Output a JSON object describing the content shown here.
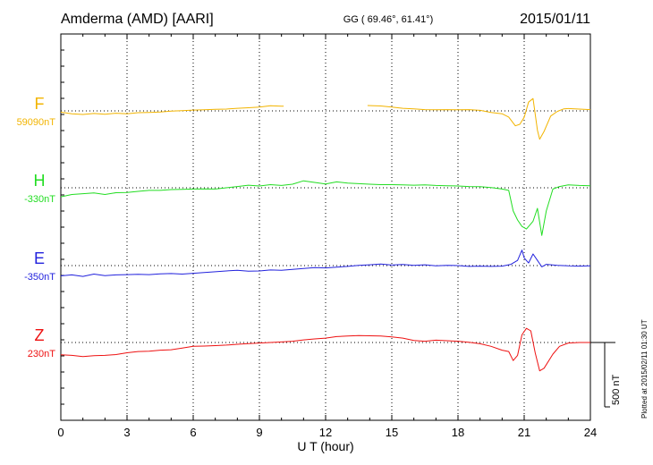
{
  "header": {
    "station": "Amderma (AMD)  [AARI]",
    "coords": "GG ( 69.46°,  61.41°)",
    "date": "2015/01/11"
  },
  "chart_data": {
    "type": "line",
    "xlabel": "U T (hour)",
    "xlim": [
      0,
      24
    ],
    "x_ticks": [
      0,
      3,
      6,
      9,
      12,
      15,
      18,
      21,
      24
    ],
    "x_tick_labels": [
      "0",
      "3",
      "6",
      "9",
      "12",
      "15",
      "18",
      "21",
      "24"
    ],
    "grid": true,
    "scale_bar": {
      "label": "500 nT",
      "value_nT": 500
    },
    "plotted_note": "Plotted at 2015/02/11 01:30 UT",
    "series": [
      {
        "name": "F",
        "baseline_label": "59090nT",
        "baseline_nT": 59090,
        "color": "#f2b400",
        "gaps": [
          [
            10.1,
            13.9
          ]
        ],
        "points": [
          [
            0,
            -10
          ],
          [
            0.5,
            -22
          ],
          [
            1,
            -28
          ],
          [
            1.5,
            -20
          ],
          [
            2,
            -26
          ],
          [
            2.5,
            -18
          ],
          [
            3,
            -22
          ],
          [
            3.5,
            -14
          ],
          [
            4,
            -12
          ],
          [
            4.5,
            -8
          ],
          [
            5,
            -2
          ],
          [
            5.5,
            2
          ],
          [
            6,
            6
          ],
          [
            6.5,
            8
          ],
          [
            7,
            12
          ],
          [
            7.5,
            14
          ],
          [
            8,
            20
          ],
          [
            8.5,
            24
          ],
          [
            9,
            30
          ],
          [
            9.5,
            40
          ],
          [
            10,
            36
          ],
          [
            10.1,
            36
          ],
          [
            13.9,
            42
          ],
          [
            14.5,
            38
          ],
          [
            15,
            30
          ],
          [
            15.5,
            20
          ],
          [
            16,
            16
          ],
          [
            16.5,
            10
          ],
          [
            17,
            8
          ],
          [
            17.5,
            10
          ],
          [
            18,
            8
          ],
          [
            18.5,
            10
          ],
          [
            19,
            4
          ],
          [
            19.5,
            -12
          ],
          [
            20,
            -22
          ],
          [
            20.3,
            -48
          ],
          [
            20.6,
            -116
          ],
          [
            20.8,
            -104
          ],
          [
            21,
            -50
          ],
          [
            21.2,
            68
          ],
          [
            21.4,
            96
          ],
          [
            21.6,
            -150
          ],
          [
            21.7,
            -220
          ],
          [
            21.9,
            -160
          ],
          [
            22.2,
            -40
          ],
          [
            22.5,
            -4
          ],
          [
            22.8,
            16
          ],
          [
            23,
            18
          ],
          [
            23.5,
            14
          ],
          [
            24,
            10
          ]
        ]
      },
      {
        "name": "H",
        "baseline_label": "-330nT",
        "baseline_nT": -330,
        "color": "#22dd22",
        "points": [
          [
            0,
            -70
          ],
          [
            0.5,
            -52
          ],
          [
            1,
            -46
          ],
          [
            1.5,
            -40
          ],
          [
            2,
            -52
          ],
          [
            2.5,
            -38
          ],
          [
            3,
            -36
          ],
          [
            3.5,
            -28
          ],
          [
            4,
            -20
          ],
          [
            4.5,
            -20
          ],
          [
            5,
            -14
          ],
          [
            5.5,
            -12
          ],
          [
            6,
            -10
          ],
          [
            6.5,
            -8
          ],
          [
            7,
            -10
          ],
          [
            7.5,
            0
          ],
          [
            8,
            10
          ],
          [
            8.5,
            20
          ],
          [
            9,
            14
          ],
          [
            9.5,
            24
          ],
          [
            10,
            18
          ],
          [
            10.5,
            28
          ],
          [
            11,
            54
          ],
          [
            11.5,
            42
          ],
          [
            12,
            30
          ],
          [
            12.5,
            46
          ],
          [
            13,
            36
          ],
          [
            13.5,
            32
          ],
          [
            14,
            28
          ],
          [
            14.5,
            24
          ],
          [
            15,
            24
          ],
          [
            15.5,
            22
          ],
          [
            16,
            20
          ],
          [
            16.5,
            22
          ],
          [
            17,
            18
          ],
          [
            17.5,
            16
          ],
          [
            18,
            14
          ],
          [
            18.5,
            10
          ],
          [
            19,
            8
          ],
          [
            19.5,
            2
          ],
          [
            20,
            -10
          ],
          [
            20.3,
            -20
          ],
          [
            20.5,
            -180
          ],
          [
            20.7,
            -250
          ],
          [
            20.9,
            -300
          ],
          [
            21.1,
            -320
          ],
          [
            21.4,
            -260
          ],
          [
            21.6,
            -160
          ],
          [
            21.8,
            -370
          ],
          [
            22,
            -180
          ],
          [
            22.3,
            -10
          ],
          [
            22.6,
            10
          ],
          [
            23,
            22
          ],
          [
            23.5,
            18
          ],
          [
            24,
            16
          ]
        ]
      },
      {
        "name": "E",
        "baseline_label": "-350nT",
        "baseline_nT": -350,
        "color": "#2222dd",
        "points": [
          [
            0,
            -80
          ],
          [
            0.5,
            -72
          ],
          [
            1,
            -84
          ],
          [
            1.5,
            -66
          ],
          [
            2,
            -78
          ],
          [
            2.5,
            -72
          ],
          [
            3,
            -70
          ],
          [
            3.5,
            -68
          ],
          [
            4,
            -70
          ],
          [
            4.5,
            -64
          ],
          [
            5,
            -62
          ],
          [
            5.5,
            -66
          ],
          [
            6,
            -60
          ],
          [
            6.5,
            -54
          ],
          [
            7,
            -48
          ],
          [
            7.5,
            -42
          ],
          [
            8,
            -36
          ],
          [
            8.5,
            -44
          ],
          [
            9,
            -42
          ],
          [
            9.5,
            -34
          ],
          [
            10,
            -36
          ],
          [
            10.5,
            -30
          ],
          [
            11,
            -22
          ],
          [
            11.5,
            -16
          ],
          [
            12,
            -18
          ],
          [
            12.5,
            -12
          ],
          [
            13,
            -6
          ],
          [
            13.5,
            2
          ],
          [
            14,
            6
          ],
          [
            14.5,
            12
          ],
          [
            15,
            4
          ],
          [
            15.5,
            8
          ],
          [
            16,
            2
          ],
          [
            16.5,
            6
          ],
          [
            17,
            -2
          ],
          [
            17.5,
            2
          ],
          [
            18,
            0
          ],
          [
            18.5,
            -6
          ],
          [
            19,
            -4
          ],
          [
            19.5,
            -6
          ],
          [
            20,
            -4
          ],
          [
            20.4,
            10
          ],
          [
            20.7,
            40
          ],
          [
            20.9,
            120
          ],
          [
            21,
            60
          ],
          [
            21.2,
            20
          ],
          [
            21.4,
            90
          ],
          [
            21.6,
            40
          ],
          [
            21.8,
            -10
          ],
          [
            22,
            10
          ],
          [
            22.5,
            2
          ],
          [
            23,
            -2
          ],
          [
            23.5,
            -4
          ],
          [
            24,
            -2
          ]
        ]
      },
      {
        "name": "Z",
        "baseline_label": "230nT",
        "baseline_nT": 230,
        "color": "#ee1111",
        "points": [
          [
            0,
            -96
          ],
          [
            0.5,
            -100
          ],
          [
            1,
            -110
          ],
          [
            1.5,
            -102
          ],
          [
            2,
            -100
          ],
          [
            2.5,
            -94
          ],
          [
            3,
            -80
          ],
          [
            3.5,
            -70
          ],
          [
            4,
            -68
          ],
          [
            4.5,
            -60
          ],
          [
            5,
            -56
          ],
          [
            5.5,
            -44
          ],
          [
            6,
            -30
          ],
          [
            6.5,
            -28
          ],
          [
            7,
            -24
          ],
          [
            7.5,
            -20
          ],
          [
            8,
            -14
          ],
          [
            8.5,
            -8
          ],
          [
            9,
            -4
          ],
          [
            9.5,
            0
          ],
          [
            10,
            4
          ],
          [
            10.5,
            10
          ],
          [
            11,
            20
          ],
          [
            11.5,
            28
          ],
          [
            12,
            34
          ],
          [
            12.5,
            46
          ],
          [
            13,
            50
          ],
          [
            13.5,
            54
          ],
          [
            14,
            52
          ],
          [
            14.5,
            50
          ],
          [
            15,
            44
          ],
          [
            15.5,
            34
          ],
          [
            16,
            16
          ],
          [
            16.5,
            10
          ],
          [
            17,
            18
          ],
          [
            17.5,
            14
          ],
          [
            18,
            10
          ],
          [
            18.5,
            2
          ],
          [
            19,
            -10
          ],
          [
            19.5,
            -30
          ],
          [
            20,
            -60
          ],
          [
            20.3,
            -70
          ],
          [
            20.5,
            -140
          ],
          [
            20.7,
            -100
          ],
          [
            20.9,
            60
          ],
          [
            21.1,
            110
          ],
          [
            21.3,
            90
          ],
          [
            21.5,
            -80
          ],
          [
            21.7,
            -220
          ],
          [
            21.9,
            -200
          ],
          [
            22.3,
            -90
          ],
          [
            22.6,
            -30
          ],
          [
            23,
            -4
          ],
          [
            23.5,
            0
          ],
          [
            24,
            0
          ]
        ]
      }
    ]
  }
}
